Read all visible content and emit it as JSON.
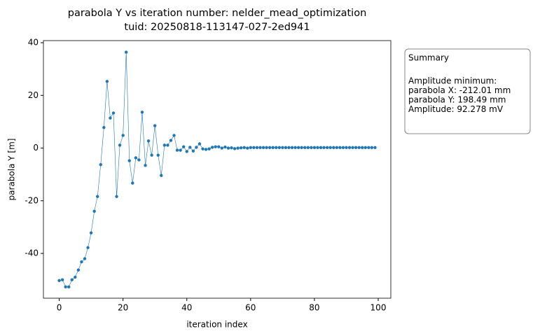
{
  "chart_data": {
    "type": "line",
    "title": "parabola Y vs iteration number: nelder_mead_optimization",
    "subtitle": "tuid: 20250818-113147-027-2ed941",
    "x_label": "iteration index",
    "y_label": "parabola Y [m]",
    "x": [
      0,
      1,
      2,
      3,
      4,
      5,
      6,
      7,
      8,
      9,
      10,
      11,
      12,
      13,
      14,
      15,
      16,
      17,
      18,
      19,
      20,
      21,
      22,
      23,
      24,
      25,
      26,
      27,
      28,
      29,
      30,
      31,
      32,
      33,
      34,
      35,
      36,
      37,
      38,
      39,
      40,
      41,
      42,
      43,
      44,
      45,
      46,
      47,
      48,
      49,
      50,
      51,
      52,
      53,
      54,
      55,
      56,
      57,
      58,
      59,
      60,
      61,
      62,
      63,
      64,
      65,
      66,
      67,
      68,
      69,
      70,
      71,
      72,
      73,
      74,
      75,
      76,
      77,
      78,
      79,
      80,
      81,
      82,
      83,
      84,
      85,
      86,
      87,
      88,
      89,
      90,
      91,
      92,
      93,
      94,
      95,
      96,
      97,
      98,
      99
    ],
    "series": [
      {
        "name": "parabola Y",
        "color": "#1f77b4",
        "values": [
          -50.3,
          -50,
          -52.7,
          -52.7,
          -50,
          -49,
          -46.3,
          -43.2,
          -42,
          -37.8,
          -32.2,
          -24,
          -18.4,
          -6.3,
          7.8,
          25.3,
          11.4,
          13.3,
          -18.4,
          1.1,
          4.8,
          36.4,
          -4.8,
          -13.3,
          -3.7,
          -4.5,
          13.6,
          -6.6,
          2.7,
          -2.7,
          8.5,
          -2.7,
          -10.4,
          1.1,
          1.1,
          2.9,
          4.8,
          -0.8,
          -0.8,
          0.5,
          -1.3,
          0.3,
          -1.1,
          0.3,
          1.6,
          -0.3,
          -0.5,
          -0.3,
          0.3,
          0.5,
          0.5,
          0,
          0.4,
          0,
          0.1,
          -0.2,
          0,
          0.1,
          0.2,
          0,
          0.2,
          0.2,
          0.2,
          0.2,
          0.2,
          0.2,
          0.2,
          0.2,
          0.2,
          0.2,
          0.2,
          0.2,
          0.2,
          0.2,
          0.2,
          0.2,
          0.2,
          0.2,
          0.2,
          0.2,
          0.2,
          0.2,
          0.2,
          0.2,
          0.2,
          0.2,
          0.2,
          0.2,
          0.2,
          0.2,
          0.2,
          0.2,
          0.2,
          0.2,
          0.2,
          0.2,
          0.2,
          0.2,
          0.2,
          0.2
        ]
      }
    ],
    "xlim": [
      -4.95,
      103.95
    ],
    "xticks": [
      0,
      20,
      40,
      60,
      80,
      100
    ],
    "ylim": [
      -57.0,
      40.8
    ],
    "yticks": [
      -40,
      -20,
      0,
      20,
      40
    ],
    "annotation": {
      "title": "Summary",
      "lines": [
        "Amplitude minimum:",
        "parabola X: -212.01 mm",
        "parabola Y: 198.49 mm",
        "Amplitude: 92.278 mV"
      ]
    }
  }
}
